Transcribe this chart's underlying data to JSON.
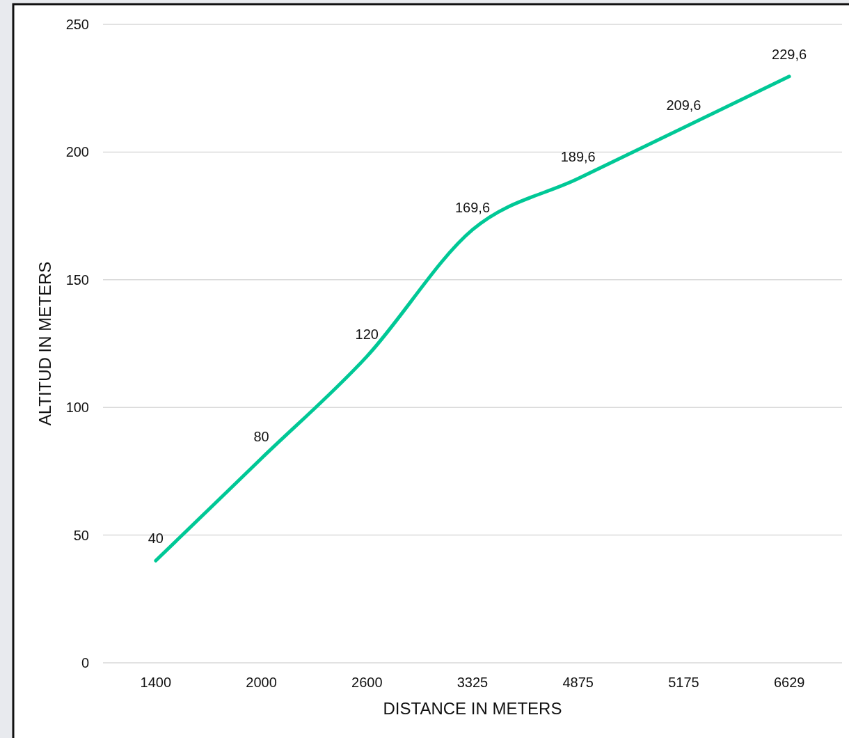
{
  "chart_data": {
    "type": "line",
    "xlabel": "DISTANCE IN METERS",
    "ylabel": "ALTITUD IN METERS",
    "categories": [
      "1400",
      "2000",
      "2600",
      "3325",
      "4875",
      "5175",
      "6629"
    ],
    "series": [
      {
        "color": "#00c896",
        "values": [
          40,
          80,
          120,
          169.6,
          189.6,
          209.6,
          229.6
        ],
        "value_labels": [
          "40",
          "80",
          "120",
          "169,6",
          "189,6",
          "209,6",
          "229,6"
        ]
      }
    ],
    "ylim": [
      0,
      250
    ],
    "yticks": [
      0,
      50,
      100,
      150,
      200,
      250
    ],
    "grid": "y",
    "marker": "none",
    "line_style": "solid"
  }
}
